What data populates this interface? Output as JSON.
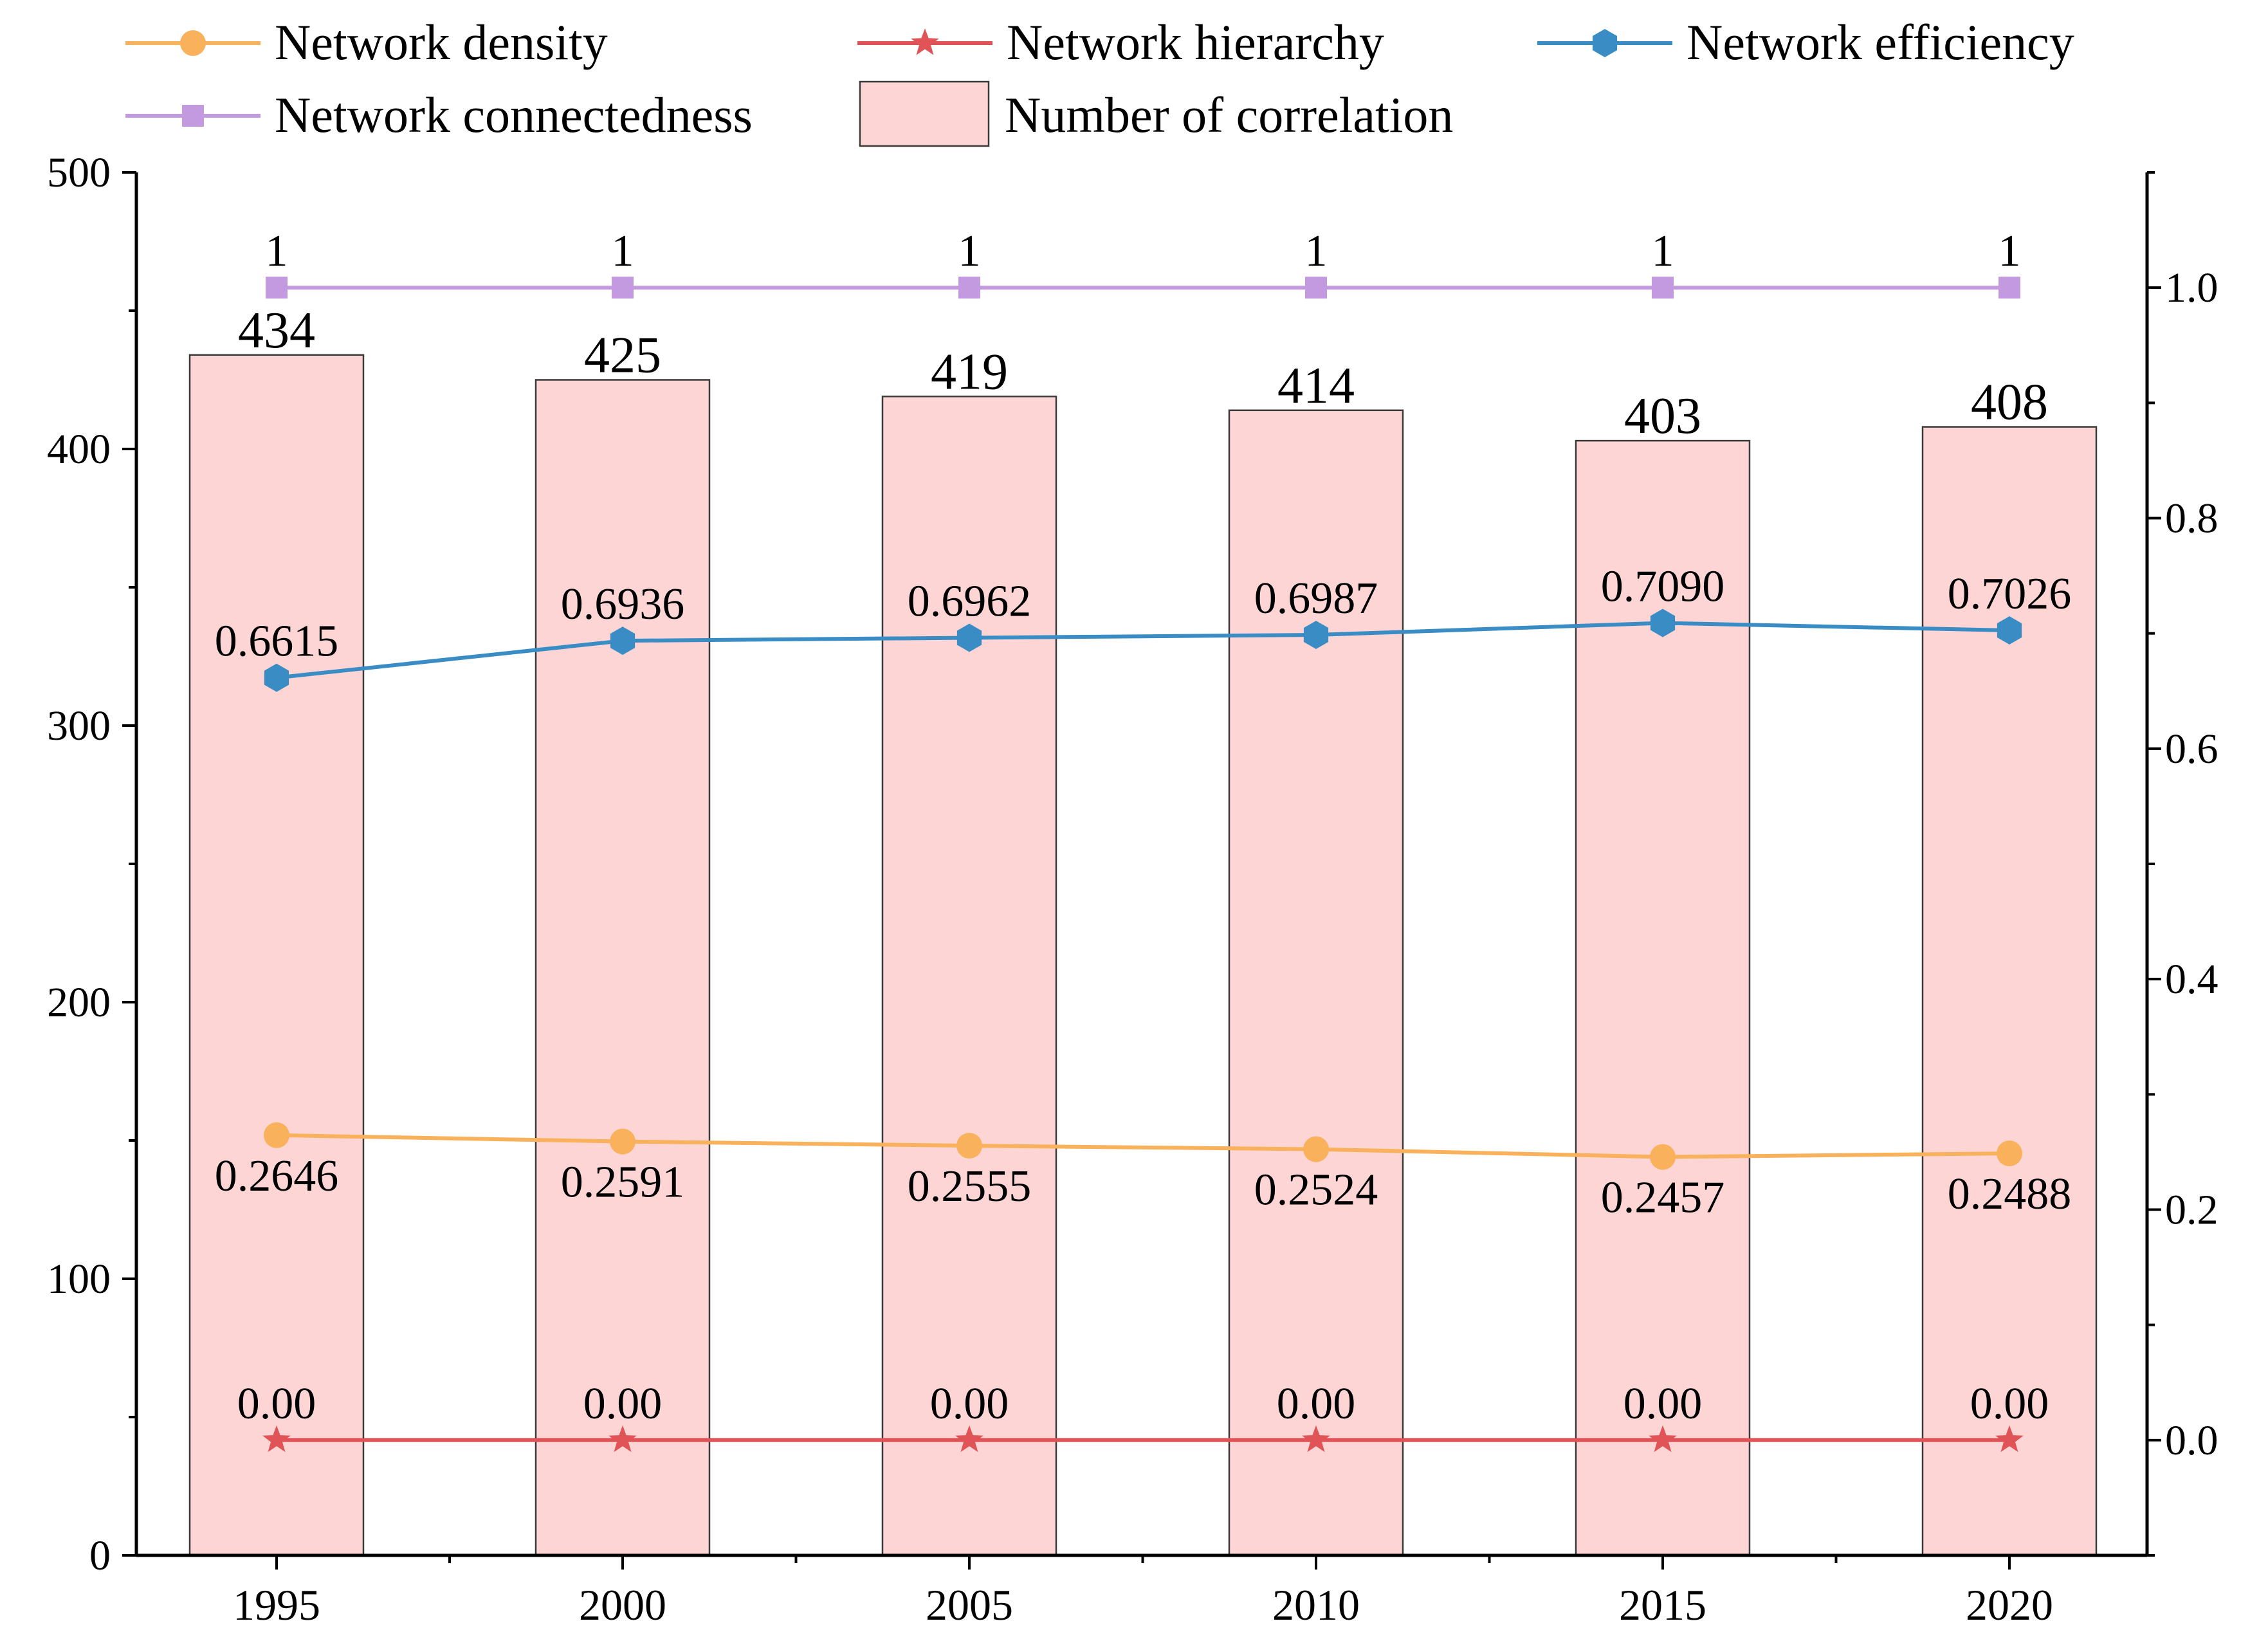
{
  "chart_data": {
    "type": "bar",
    "categories": [
      "1995",
      "2000",
      "2005",
      "2010",
      "2015",
      "2020"
    ],
    "left_axis": {
      "ylim": [
        0,
        500
      ],
      "ticks": [
        "0",
        "100",
        "200",
        "300",
        "400",
        "500"
      ]
    },
    "right_axis": {
      "ylim": [
        -0.1,
        1.1
      ],
      "ticks": [
        "0.0",
        "0.2",
        "0.4",
        "0.6",
        "0.8",
        "1.0"
      ]
    },
    "bars": {
      "name": "Number of correlation",
      "values": [
        434,
        425,
        419,
        414,
        403,
        408
      ],
      "labels": [
        "434",
        "425",
        "419",
        "414",
        "403",
        "408"
      ]
    },
    "lines": [
      {
        "name": "Network density",
        "values": [
          0.2646,
          0.2591,
          0.2555,
          0.2524,
          0.2457,
          0.2488
        ],
        "labels": [
          "0.2646",
          "0.2591",
          "0.2555",
          "0.2524",
          "0.2457",
          "0.2488"
        ],
        "marker": "circle",
        "label_position": "below"
      },
      {
        "name": "Network hierarchy",
        "values": [
          0,
          0,
          0,
          0,
          0,
          0
        ],
        "labels": [
          "0.00",
          "0.00",
          "0.00",
          "0.00",
          "0.00",
          "0.00"
        ],
        "marker": "star",
        "label_position": "above"
      },
      {
        "name": "Network efficiency",
        "values": [
          0.6615,
          0.6936,
          0.6962,
          0.6987,
          0.709,
          0.7026
        ],
        "labels": [
          "0.6615",
          "0.6936",
          "0.6962",
          "0.6987",
          "0.7090",
          "0.7026"
        ],
        "marker": "hexagon",
        "label_position": "above"
      },
      {
        "name": "Network connectedness",
        "values": [
          1,
          1,
          1,
          1,
          1,
          1
        ],
        "labels": [
          "1",
          "1",
          "1",
          "1",
          "1",
          "1"
        ],
        "marker": "square",
        "label_position": "above"
      }
    ],
    "legend": {
      "position": "top",
      "entries": [
        "Network density",
        "Network hierarchy",
        "Network efficiency",
        "Network connectedness",
        "Number of correlation"
      ]
    }
  },
  "colors": {
    "bar_fill": "#fdd5d5",
    "bar_stroke": "#3a3a3a",
    "density": "#f9b15c",
    "hierarchy": "#e05458",
    "efficiency": "#3a8cc4",
    "connectedness": "#c39ae0",
    "axis": "#000000"
  }
}
